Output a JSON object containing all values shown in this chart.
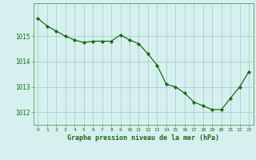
{
  "x": [
    0,
    1,
    2,
    3,
    4,
    5,
    6,
    7,
    8,
    9,
    10,
    11,
    12,
    13,
    14,
    15,
    16,
    17,
    18,
    19,
    20,
    21,
    22,
    23
  ],
  "y": [
    1015.7,
    1015.4,
    1015.2,
    1015.0,
    1014.85,
    1014.75,
    1014.8,
    1014.8,
    1014.8,
    1015.05,
    1014.85,
    1014.7,
    1014.3,
    1013.85,
    1013.1,
    1013.0,
    1012.75,
    1012.4,
    1012.25,
    1012.1,
    1012.1,
    1012.55,
    1013.0,
    1013.6
  ],
  "line_color": "#1a6b1a",
  "marker_color": "#1a6b1a",
  "bg_color": "#d6f0ef",
  "grid_color": "#a0c8c8",
  "xlabel": "Graphe pression niveau de la mer (hPa)",
  "xlabel_color": "#1a6b1a",
  "tick_color": "#1a6b1a",
  "axis_color": "#5a9a5a",
  "ylim_min": 1011.5,
  "ylim_max": 1016.3,
  "yticks": [
    1012,
    1013,
    1014,
    1015
  ],
  "xticks": [
    0,
    1,
    2,
    3,
    4,
    5,
    6,
    7,
    8,
    9,
    10,
    11,
    12,
    13,
    14,
    15,
    16,
    17,
    18,
    19,
    20,
    21,
    22,
    23
  ]
}
